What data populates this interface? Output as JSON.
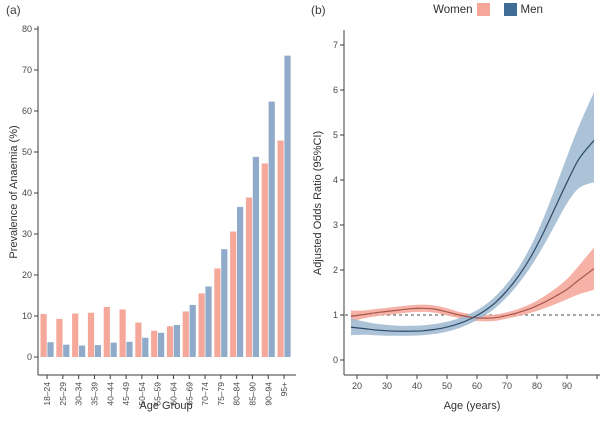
{
  "legend": {
    "items": [
      {
        "label": "Women",
        "color": "#f5a79a"
      },
      {
        "label": "Men",
        "color": "#3f6d96"
      }
    ]
  },
  "chart_data": [
    {
      "type": "bar",
      "title": "(a)",
      "xlabel": "Age Group",
      "ylabel": "Prevalence of Anaemia (%)",
      "ylim": [
        0,
        80
      ],
      "yticks": [
        0,
        10,
        20,
        30,
        40,
        50,
        60,
        70,
        80
      ],
      "grid": false,
      "categories": [
        "18–24",
        "25–29",
        "30–34",
        "35–39",
        "40–44",
        "45–49",
        "50–54",
        "55–59",
        "60–64",
        "65–69",
        "70–74",
        "75–79",
        "80–84",
        "85–90",
        "90–94",
        "95+"
      ],
      "series": [
        {
          "name": "Women",
          "color": "#f5a79a",
          "values": [
            10.5,
            9.3,
            10.6,
            10.8,
            12.2,
            11.6,
            8.4,
            6.4,
            7.5,
            11.1,
            15.5,
            21.6,
            30.6,
            38.9,
            47.2,
            52.8
          ]
        },
        {
          "name": "Men",
          "color": "#8fabc9",
          "values": [
            3.6,
            3.0,
            2.8,
            2.9,
            3.5,
            3.7,
            4.7,
            5.9,
            7.8,
            12.7,
            17.2,
            26.3,
            36.6,
            48.8,
            62.3,
            73.5
          ]
        }
      ]
    },
    {
      "type": "line",
      "title": "(b)",
      "xlabel": "Age (years)",
      "ylabel": "Adjusted Odds Ratio (95%CI)",
      "ylim": [
        0,
        7
      ],
      "xlim": [
        16,
        101
      ],
      "yticks": [
        0,
        1,
        2,
        3,
        4,
        5,
        6,
        7
      ],
      "xticks": [
        20,
        30,
        40,
        50,
        60,
        70,
        80,
        90
      ],
      "reference_line_y": 1,
      "legend_position": "top",
      "x": [
        18,
        22,
        26,
        30,
        34,
        38,
        42,
        46,
        50,
        54,
        58,
        62,
        66,
        70,
        74,
        78,
        82,
        86,
        90,
        94,
        99
      ],
      "series": [
        {
          "name": "Women",
          "line_color": "#a8564e",
          "band_color": "#f5a79a",
          "y": [
            0.97,
            1.01,
            1.05,
            1.08,
            1.11,
            1.14,
            1.15,
            1.13,
            1.07,
            1.0,
            0.95,
            0.93,
            0.94,
            0.99,
            1.06,
            1.15,
            1.27,
            1.41,
            1.57,
            1.78,
            2.03
          ],
          "lo": [
            0.85,
            0.92,
            0.97,
            1.0,
            1.03,
            1.06,
            1.07,
            1.05,
            0.99,
            0.93,
            0.88,
            0.86,
            0.87,
            0.92,
            0.98,
            1.05,
            1.14,
            1.24,
            1.35,
            1.46,
            1.56
          ],
          "hi": [
            1.1,
            1.1,
            1.13,
            1.16,
            1.19,
            1.22,
            1.23,
            1.21,
            1.15,
            1.07,
            1.02,
            1.0,
            1.01,
            1.06,
            1.14,
            1.25,
            1.4,
            1.58,
            1.8,
            2.1,
            2.5
          ]
        },
        {
          "name": "Men",
          "line_color": "#2c4a66",
          "band_color": "#9fbad2",
          "y": [
            0.73,
            0.7,
            0.67,
            0.65,
            0.64,
            0.64,
            0.65,
            0.68,
            0.73,
            0.81,
            0.92,
            1.07,
            1.27,
            1.54,
            1.88,
            2.3,
            2.81,
            3.38,
            3.95,
            4.47,
            4.88
          ],
          "lo": [
            0.55,
            0.56,
            0.55,
            0.54,
            0.54,
            0.54,
            0.55,
            0.58,
            0.63,
            0.71,
            0.82,
            0.96,
            1.15,
            1.4,
            1.71,
            2.08,
            2.52,
            3.0,
            3.48,
            3.82,
            3.95
          ],
          "hi": [
            0.93,
            0.86,
            0.81,
            0.78,
            0.76,
            0.76,
            0.77,
            0.8,
            0.85,
            0.93,
            1.04,
            1.19,
            1.41,
            1.7,
            2.07,
            2.54,
            3.13,
            3.81,
            4.52,
            5.2,
            5.95
          ]
        }
      ]
    }
  ],
  "style": {
    "axis_color": "#3c3c3c",
    "tick_text_color": "#474747",
    "ref_line_color": "#4d4d4d"
  }
}
